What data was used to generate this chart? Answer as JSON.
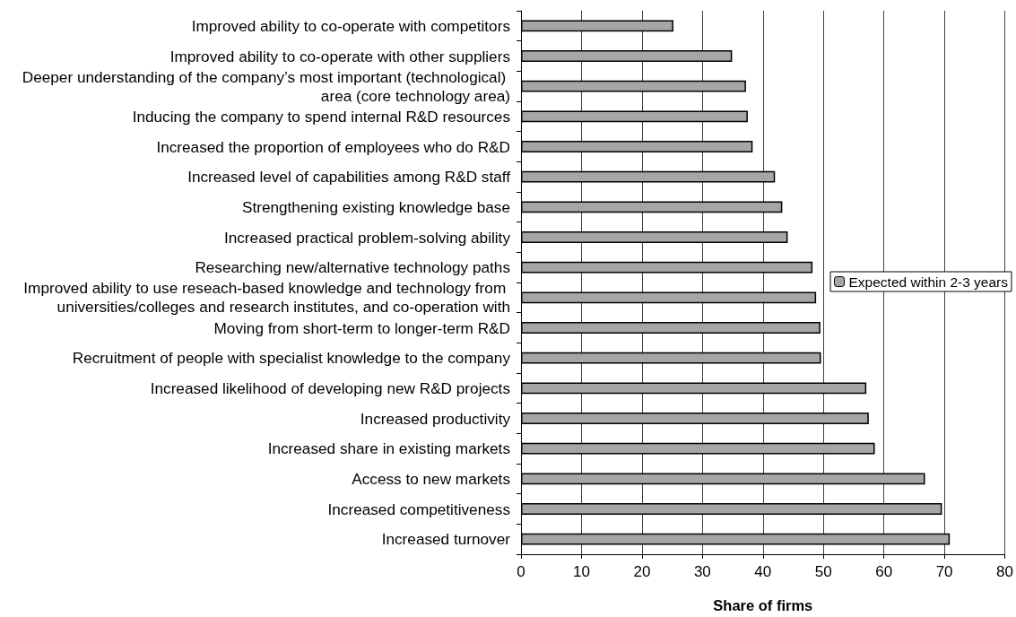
{
  "chart_data": {
    "type": "bar",
    "orientation": "horizontal",
    "xlabel": "Share of firms",
    "categories": [
      "Improved ability to co-operate with competitors",
      "Improved ability to co-operate with other suppliers",
      "Deeper understanding of the company’s most important (technological) area (core technology area)",
      "Inducing the company to spend internal R&D resources",
      "Increased the proportion of employees who do R&D",
      "Increased level of capabilities among R&D staff",
      "Strengthening existing knowledge base",
      "Increased practical problem-solving ability",
      "Researching new/alternative technology paths",
      "Improved ability to use reseach-based knowledge and technology from universities/colleges and research institutes, and co-operation with",
      "Moving from short-term to longer-term R&D",
      "Recruitment of people with specialist knowledge to the company",
      "Increased likelihood of developing new R&D projects",
      "Increased productivity",
      "Increased share in existing markets",
      "Access to new markets",
      "Increased competitiveness",
      "Increased turnover"
    ],
    "series": [
      {
        "name": "Expected within 2-3 years",
        "color": "#a6a6a6",
        "values": [
          25.2,
          34.9,
          37.2,
          37.5,
          38.3,
          42.0,
          43.2,
          44.1,
          48.2,
          48.8,
          49.5,
          49.6,
          57.1,
          57.5,
          58.5,
          66.8,
          69.6,
          70.9
        ]
      }
    ],
    "xlim": [
      0,
      80
    ],
    "xticks": [
      0,
      10,
      20,
      30,
      40,
      50,
      60,
      70,
      80
    ],
    "grid": "x",
    "legend": "right"
  }
}
